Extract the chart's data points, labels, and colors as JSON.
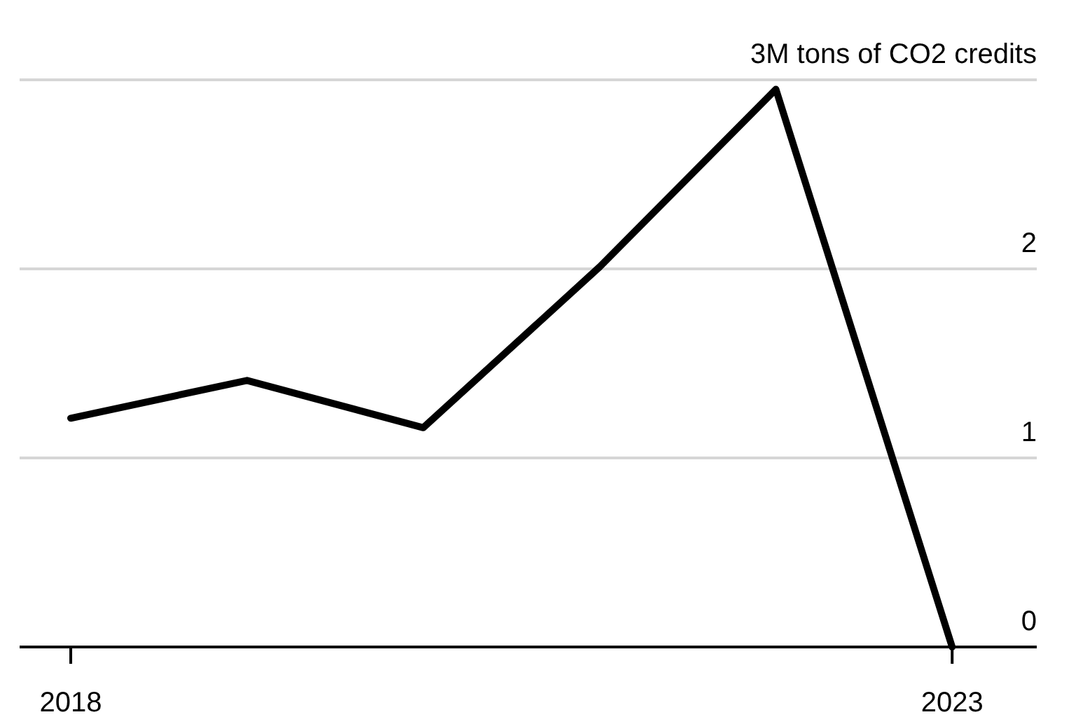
{
  "chart_data": {
    "type": "line",
    "x": [
      2018,
      2019,
      2020,
      2021,
      2022,
      2023
    ],
    "series": [
      {
        "color": "#000000",
        "values": [
          1.21,
          1.41,
          1.16,
          2.01,
          2.95,
          0
        ]
      }
    ],
    "xlim": [
      2017.71,
      2023.48
    ],
    "xticks": [
      2018,
      2023
    ],
    "ylim": [
      0,
      3
    ],
    "yticks": [
      0,
      1,
      2,
      {
        "value": 3,
        "label": "3M tons of CO2 credits"
      }
    ],
    "grid": "y",
    "marker": "none",
    "line_style": "solid"
  }
}
